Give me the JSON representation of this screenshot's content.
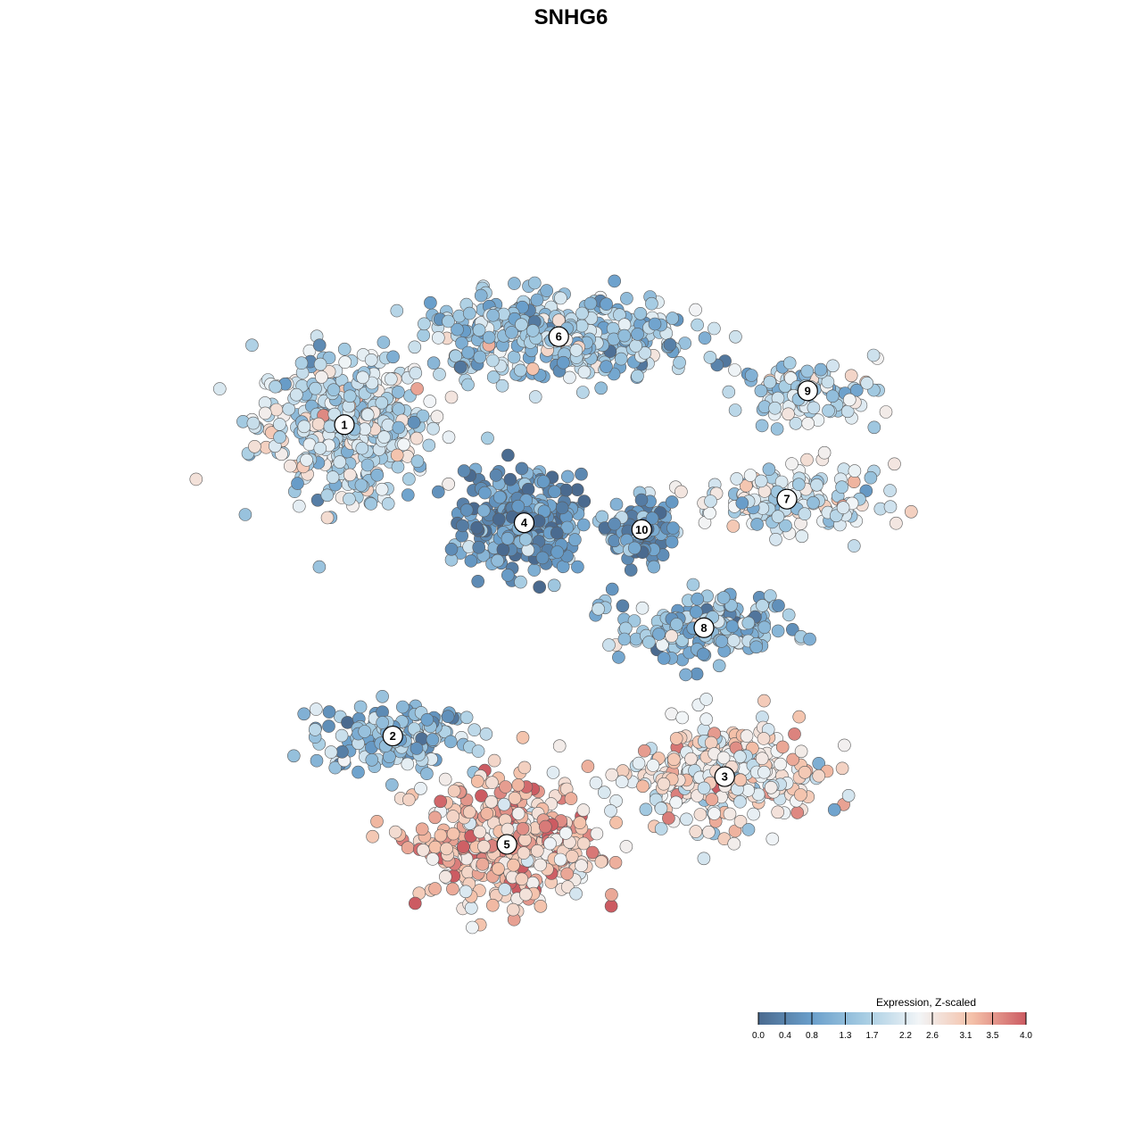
{
  "chart_data": {
    "type": "scatter",
    "title": "SNHG6",
    "xlabel": "",
    "ylabel": "",
    "grid": false,
    "value_range": [
      0.0,
      4.0
    ],
    "colorbar": {
      "title": "Expression, Z-scaled",
      "placement": "bottom-right",
      "ticks": [
        "0.0",
        "0.4",
        "0.8",
        "1.3",
        "1.7",
        "2.2",
        "2.6",
        "3.1",
        "3.5",
        "4.0"
      ],
      "colors": [
        "#4a6a8f",
        "#6a9fcb",
        "#a7cde3",
        "#f2f5f7",
        "#f4c0a8",
        "#cc5b62"
      ]
    },
    "clusters": [
      {
        "id": "1",
        "label": "1",
        "center": [
          -7.2,
          4.2
        ],
        "spread": [
          2.3,
          1.9
        ],
        "mean_expression": 1.9,
        "n": 430
      },
      {
        "id": "2",
        "label": "2",
        "center": [
          -5.8,
          -5.0
        ],
        "spread": [
          2.1,
          0.9
        ],
        "mean_expression": 1.2,
        "n": 150
      },
      {
        "id": "3",
        "label": "3",
        "center": [
          3.8,
          -6.2
        ],
        "spread": [
          2.4,
          1.4
        ],
        "mean_expression": 2.5,
        "n": 330
      },
      {
        "id": "4",
        "label": "4",
        "center": [
          -2.0,
          1.3
        ],
        "spread": [
          1.5,
          1.3
        ],
        "mean_expression": 0.6,
        "n": 300
      },
      {
        "id": "5",
        "label": "5",
        "center": [
          -2.5,
          -8.2
        ],
        "spread": [
          2.3,
          1.6
        ],
        "mean_expression": 3.1,
        "n": 450
      },
      {
        "id": "6",
        "label": "6",
        "center": [
          -1.0,
          6.8
        ],
        "spread": [
          3.6,
          1.1
        ],
        "mean_expression": 1.5,
        "n": 380
      },
      {
        "id": "7",
        "label": "7",
        "center": [
          5.6,
          2.0
        ],
        "spread": [
          2.4,
          0.9
        ],
        "mean_expression": 2.0,
        "n": 170
      },
      {
        "id": "8",
        "label": "8",
        "center": [
          3.2,
          -1.8
        ],
        "spread": [
          2.3,
          0.9
        ],
        "mean_expression": 1.3,
        "n": 170
      },
      {
        "id": "9",
        "label": "9",
        "center": [
          6.2,
          5.2
        ],
        "spread": [
          1.8,
          0.8
        ],
        "mean_expression": 1.8,
        "n": 100
      },
      {
        "id": "10",
        "label": "10",
        "center": [
          1.4,
          1.1
        ],
        "spread": [
          0.9,
          0.8
        ],
        "mean_expression": 0.7,
        "n": 80
      }
    ],
    "x_domain": [
      -12,
      12
    ],
    "y_domain": [
      -12,
      12
    ]
  }
}
